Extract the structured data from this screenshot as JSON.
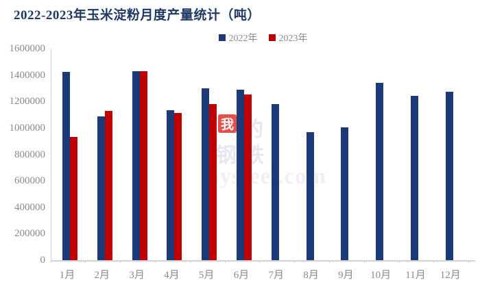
{
  "title": "2022-2023年玉米淀粉月度产量统计（吨）",
  "colors": {
    "title": "#1f3864",
    "bar_2022": "#1a3a78",
    "bar_2023": "#c00000",
    "axis_text": "#8a8a8a",
    "axis_line": "#d2d2d2"
  },
  "legend": {
    "items": [
      {
        "label": "2022年",
        "color": "#1a3a78"
      },
      {
        "label": "2023年",
        "color": "#c00000"
      }
    ]
  },
  "watermark": {
    "box_char": "我",
    "char_after": "的",
    "row2": "钢铁",
    "row3": "mysteel.com"
  },
  "chart_data": {
    "type": "bar",
    "title": "2022-2023年玉米淀粉月度产量统计（吨）",
    "categories": [
      "1月",
      "2月",
      "3月",
      "4月",
      "5月",
      "6月",
      "7月",
      "8月",
      "9月",
      "10月",
      "11月",
      "12月"
    ],
    "series": [
      {
        "name": "2022年",
        "color": "#1a3a78",
        "values": [
          1425000,
          1090000,
          1430000,
          1135000,
          1300000,
          1290000,
          1180000,
          970000,
          1005000,
          1340000,
          1245000,
          1275000
        ]
      },
      {
        "name": "2023年",
        "color": "#c00000",
        "values": [
          930000,
          1130000,
          1430000,
          1115000,
          1180000,
          1255000,
          null,
          null,
          null,
          null,
          null,
          null
        ]
      }
    ],
    "xlabel": "",
    "ylabel": "",
    "ylim": [
      0,
      1600000
    ],
    "yticks": [
      0,
      200000,
      400000,
      600000,
      800000,
      1000000,
      1200000,
      1400000,
      1600000
    ],
    "grid": false,
    "legend_position": "top-center"
  }
}
